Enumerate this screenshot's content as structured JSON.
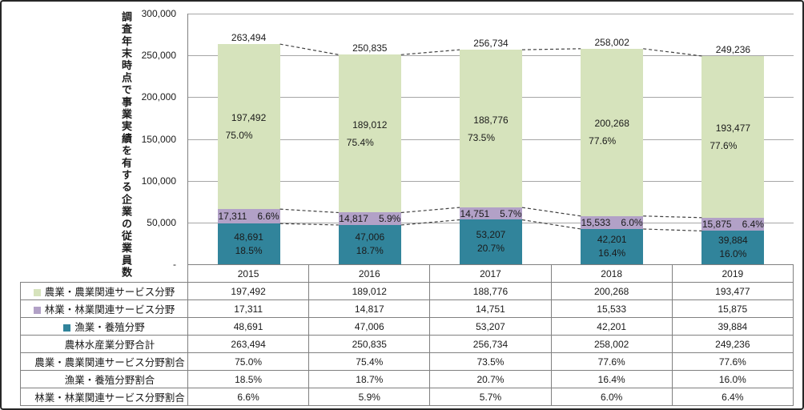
{
  "colors": {
    "agriculture": "#d6e3bc",
    "forestry": "#b2a1c7",
    "fisheries": "#31849b",
    "gridline": "#a6a6a6",
    "axis_line": "#808080",
    "connector": "#404040",
    "table_border": "#808080",
    "frame": "#262626",
    "text": "#1a1a1a"
  },
  "y_axis": {
    "title": "調査年末時点で事業実績を有する企業の従業員数",
    "tick_labels": [
      "300,000",
      "250,000",
      "200,000",
      "150,000",
      "100,000",
      "50,000",
      "-"
    ],
    "ylim": [
      0,
      300000
    ]
  },
  "chart_data": {
    "type": "bar",
    "stacked": true,
    "stack_order": "first series drawn on top",
    "categories": [
      "2015",
      "2016",
      "2017",
      "2018",
      "2019"
    ],
    "series": [
      {
        "key": "agriculture",
        "name": "農業・農業関連サービス分野",
        "color": "#d6e3bc",
        "values": [
          197492,
          189012,
          188776,
          200268,
          193477
        ],
        "pct_labels": [
          "75.0%",
          "75.4%",
          "73.5%",
          "77.6%",
          "77.6%"
        ]
      },
      {
        "key": "forestry",
        "name": "林業・林業関連サービス分野",
        "color": "#b2a1c7",
        "values": [
          17311,
          14817,
          14751,
          15533,
          15875
        ],
        "pct_labels": [
          "6.6%",
          "5.9%",
          "5.7%",
          "6.0%",
          "6.4%"
        ]
      },
      {
        "key": "fisheries",
        "name": "漁業・養殖分野",
        "color": "#31849b",
        "values": [
          48691,
          47006,
          53207,
          42201,
          39884
        ],
        "pct_labels": [
          "18.5%",
          "18.7%",
          "20.7%",
          "16.4%",
          "16.0%"
        ]
      }
    ],
    "totals": [
      263494,
      250835,
      256734,
      258002,
      249236
    ],
    "total_labels": [
      "263,494",
      "250,835",
      "256,734",
      "258,002",
      "249,236"
    ],
    "title": "",
    "xlabel": "",
    "ylabel": "調査年末時点で事業実績を有する企業の従業員数",
    "ylim": [
      0,
      300000
    ],
    "grid": true,
    "series_connector_lines": "dashed"
  },
  "table": {
    "col_headers": [
      "2015",
      "2016",
      "2017",
      "2018",
      "2019"
    ],
    "rows": [
      {
        "label": "農業・農業関連サービス分野",
        "swatch": "#d6e3bc",
        "values": [
          "197,492",
          "189,012",
          "188,776",
          "200,268",
          "193,477"
        ]
      },
      {
        "label": "林業・林業関連サービス分野",
        "swatch": "#b2a1c7",
        "values": [
          "17,311",
          "14,817",
          "14,751",
          "15,533",
          "15,875"
        ]
      },
      {
        "label": "漁業・養殖分野",
        "swatch": "#31849b",
        "values": [
          "48,691",
          "47,006",
          "53,207",
          "42,201",
          "39,884"
        ]
      },
      {
        "label": "農林水産業分野合計",
        "swatch": null,
        "values": [
          "263,494",
          "250,835",
          "256,734",
          "258,002",
          "249,236"
        ]
      },
      {
        "label": "農業・農業関連サービス分野割合",
        "swatch": null,
        "values": [
          "75.0%",
          "75.4%",
          "73.5%",
          "77.6%",
          "77.6%"
        ]
      },
      {
        "label": "漁業・養殖分野割合",
        "swatch": null,
        "values": [
          "18.5%",
          "18.7%",
          "20.7%",
          "16.4%",
          "16.0%"
        ]
      },
      {
        "label": "林業・林業関連サービス分野割合",
        "swatch": null,
        "values": [
          "6.6%",
          "5.9%",
          "5.7%",
          "6.0%",
          "6.4%"
        ]
      }
    ]
  }
}
